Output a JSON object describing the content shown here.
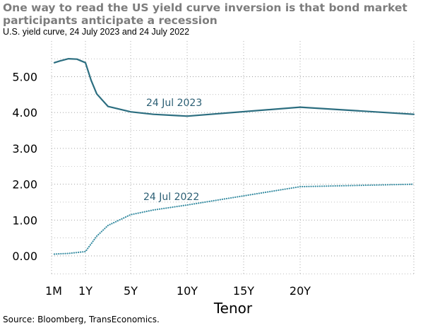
{
  "title": "One way to read the US yield curve inversion is that bond market participants anticipate a recession",
  "subtitle": "U.S. yield curve, 24 July 2023 and 24 July 2022",
  "source": "Source: Bloomberg, TransEconomics.",
  "chart_data": {
    "type": "line",
    "xlabel": "Tenor",
    "ylabel": "",
    "x_ticks": [
      {
        "label": "1M",
        "x": 0.083
      },
      {
        "label": "1Y",
        "x": 1
      },
      {
        "label": "5Y",
        "x": 5
      },
      {
        "label": "10Y",
        "x": 10
      },
      {
        "label": "15Y",
        "x": 15
      },
      {
        "label": "20Y",
        "x": 20
      }
    ],
    "xlim": [
      0,
      30
    ],
    "ylim": [
      -0.5,
      6.0
    ],
    "y_ticks": [
      "0.00",
      "1.00",
      "2.00",
      "3.00",
      "4.00",
      "5.00"
    ],
    "grid": true,
    "series": [
      {
        "name": "24 Jul 2023",
        "style": "solid",
        "color": "#2c6e80",
        "points": [
          [
            0.083,
            5.39
          ],
          [
            0.25,
            5.44
          ],
          [
            0.5,
            5.5
          ],
          [
            0.75,
            5.49
          ],
          [
            1,
            5.39
          ],
          [
            1.5,
            4.9
          ],
          [
            2,
            4.52
          ],
          [
            3,
            4.17
          ],
          [
            5,
            4.02
          ],
          [
            7,
            3.95
          ],
          [
            10,
            3.9
          ],
          [
            20,
            4.15
          ],
          [
            30,
            3.95
          ]
        ]
      },
      {
        "name": "24 Jul 2022",
        "style": "dotted",
        "color": "#3a8ea3",
        "points": [
          [
            0.083,
            0.05
          ],
          [
            0.25,
            0.06
          ],
          [
            0.5,
            0.07
          ],
          [
            1,
            0.12
          ],
          [
            2,
            0.55
          ],
          [
            3,
            0.85
          ],
          [
            5,
            1.15
          ],
          [
            7,
            1.28
          ],
          [
            10,
            1.42
          ],
          [
            20,
            1.93
          ],
          [
            30,
            2.0
          ]
        ]
      }
    ]
  }
}
